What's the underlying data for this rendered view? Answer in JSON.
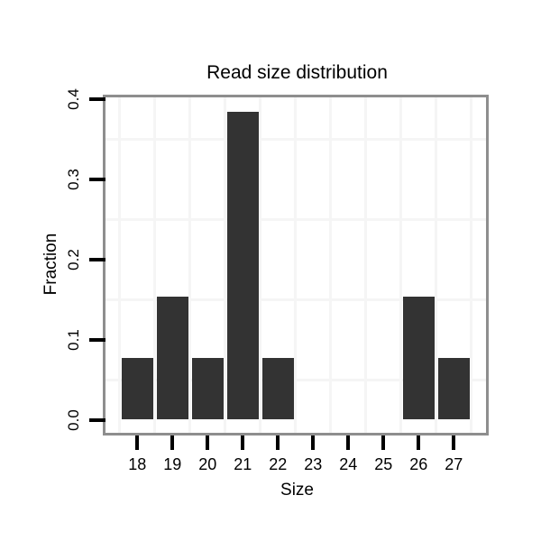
{
  "chart_data": {
    "type": "bar",
    "title": "Read size distribution",
    "xlabel": "Size",
    "ylabel": "Fraction",
    "categories": [
      "18",
      "19",
      "20",
      "21",
      "22",
      "23",
      "24",
      "25",
      "26",
      "27"
    ],
    "values": [
      0.0769,
      0.1538,
      0.0769,
      0.3846,
      0.0769,
      0,
      0,
      0,
      0.1538,
      0.0769
    ],
    "y_tick_labels": [
      "0.0",
      "0.1",
      "0.2",
      "0.3",
      "0.4"
    ],
    "ylim": [
      0,
      0.4
    ],
    "grid": "on",
    "legend": "none",
    "colors": {
      "bar": "#333333",
      "panel_border": "#8e8e8e",
      "grid_line": "#f5f5f5",
      "tick": "#000000",
      "text": "#000000",
      "background": "#ffffff"
    }
  }
}
